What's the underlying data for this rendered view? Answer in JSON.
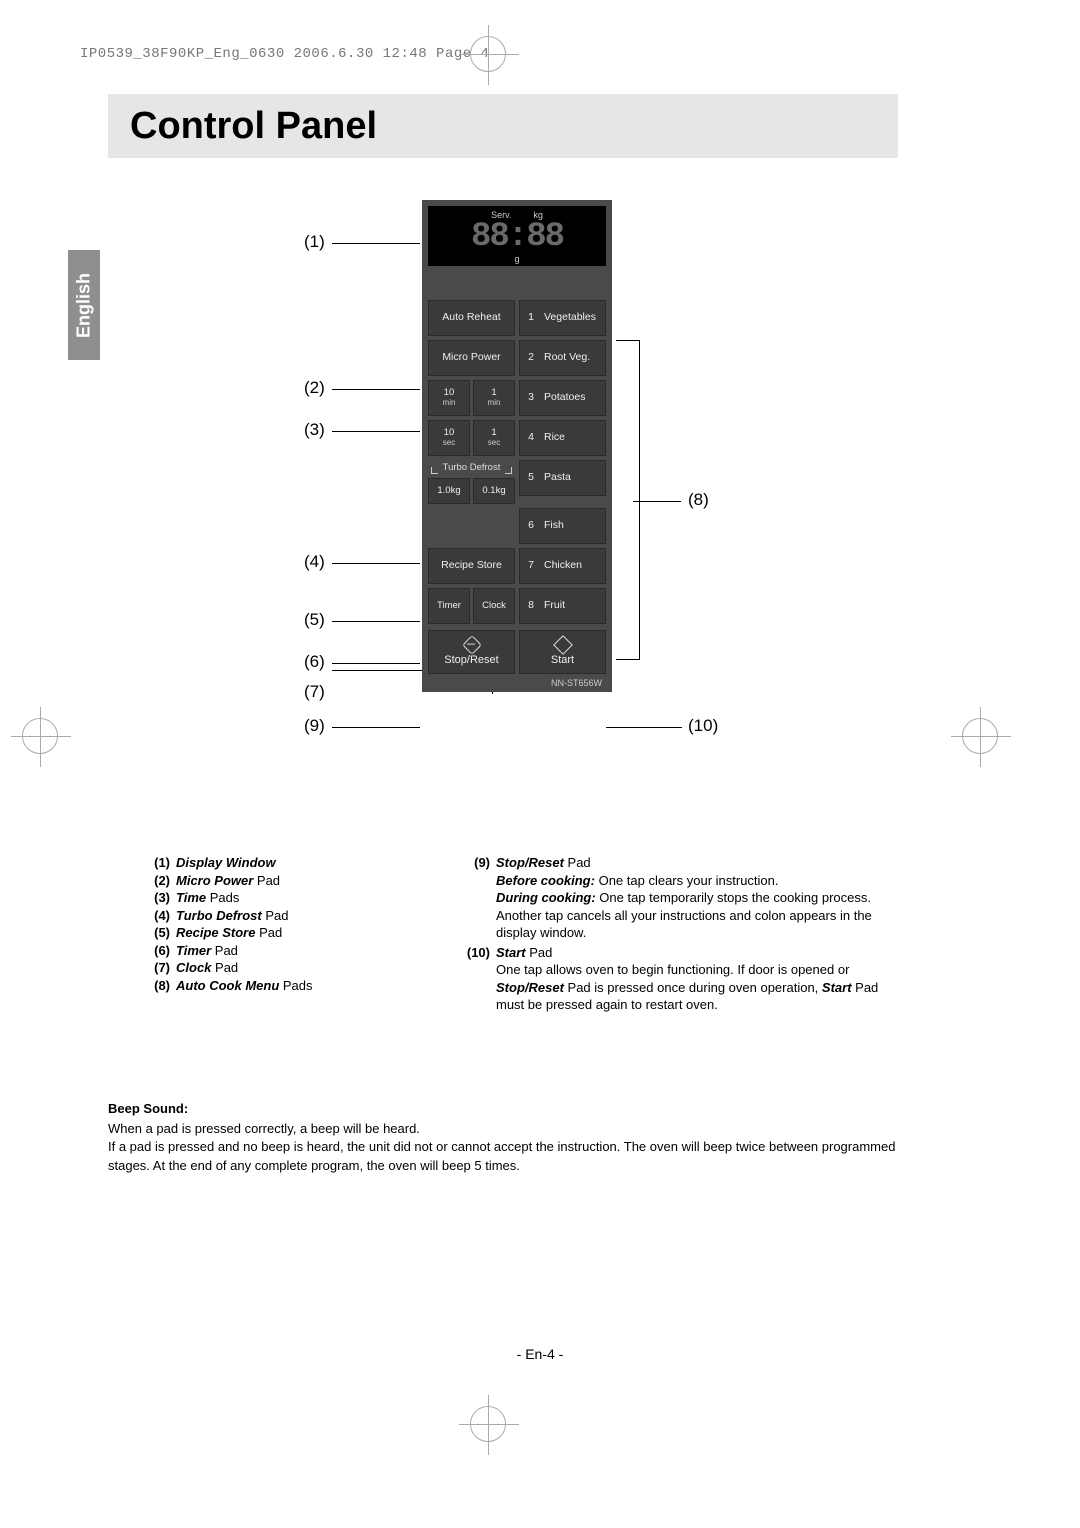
{
  "header": {
    "crop_text": "IP0539_38F90KP_Eng_0630  2006.6.30  12:48  Page 4",
    "title": "Control Panel",
    "lang_tab": "English",
    "page_number": "- En-4 -"
  },
  "panel": {
    "display": {
      "top_labels": [
        "Serv.",
        "kg"
      ],
      "segments": "88:88",
      "bottom_label": "g"
    },
    "left_buttons": {
      "auto_reheat": "Auto Reheat",
      "micro_power": "Micro Power",
      "time_10min": "10",
      "time_10min_unit": "min",
      "time_1min": "1",
      "time_1min_unit": "min",
      "time_10sec": "10",
      "time_10sec_unit": "sec",
      "time_1sec": "1",
      "time_1sec_unit": "sec",
      "turbo_label": "Turbo Defrost",
      "defrost_1kg": "1.0kg",
      "defrost_01kg": "0.1kg",
      "recipe_store": "Recipe Store",
      "timer": "Timer",
      "clock": "Clock"
    },
    "menu": [
      {
        "n": "1",
        "label": "Vegetables"
      },
      {
        "n": "2",
        "label": "Root Veg."
      },
      {
        "n": "3",
        "label": "Potatoes"
      },
      {
        "n": "4",
        "label": "Rice"
      },
      {
        "n": "5",
        "label": "Pasta"
      },
      {
        "n": "6",
        "label": "Fish"
      },
      {
        "n": "7",
        "label": "Chicken"
      },
      {
        "n": "8",
        "label": "Fruit"
      }
    ],
    "actions": {
      "stop_reset": "Stop/Reset",
      "start": "Start"
    },
    "model": "NN-ST656W"
  },
  "callouts": {
    "c1": "(1)",
    "c2": "(2)",
    "c3": "(3)",
    "c4": "(4)",
    "c5": "(5)",
    "c6": "(6)",
    "c7": "(7)",
    "c8": "(8)",
    "c9": "(9)",
    "c10": "(10)"
  },
  "legend_left": [
    {
      "idx": "(1)",
      "bold": "Display Window",
      "rest": ""
    },
    {
      "idx": "(2)",
      "bold": "Micro Power",
      "rest": " Pad"
    },
    {
      "idx": "(3)",
      "bold": "Time",
      "rest": " Pads"
    },
    {
      "idx": "(4)",
      "bold": "Turbo Defrost",
      "rest": " Pad"
    },
    {
      "idx": "(5)",
      "bold": "Recipe Store",
      "rest": " Pad"
    },
    {
      "idx": "(6)",
      "bold": "Timer",
      "rest": " Pad"
    },
    {
      "idx": "(7)",
      "bold": "Clock",
      "rest": " Pad"
    },
    {
      "idx": "(8)",
      "bold": "Auto Cook Menu",
      "rest": " Pads"
    }
  ],
  "legend_right": {
    "item9": {
      "idx": "(9)",
      "bold": "Stop/Reset",
      "rest": " Pad",
      "body_html": "Before cooking: One tap clears your instruction. During cooking: One tap temporarily stops the cooking process. Another tap cancels all your instructions and colon appears in the display window.",
      "before_label": "Before cooking:",
      "before_text": " One tap clears your instruction.",
      "during_label": "During cooking:",
      "during_text": " One tap temporarily stops the cooking process. Another tap cancels all your instructions and colon appears in the display window."
    },
    "item10": {
      "idx": "(10)",
      "bold": "Start",
      "rest": " Pad",
      "line1": "One tap allows oven to begin functioning. If door is opened or ",
      "sr": "Stop/Reset",
      "line2": " Pad is pressed once during oven operation, ",
      "st": "Start",
      "line3": " Pad must be pressed again to restart oven."
    }
  },
  "beep": {
    "heading": "Beep Sound:",
    "line1": "When a pad is pressed correctly, a beep will be heard.",
    "line2": "If a pad is pressed and no beep is heard, the unit did not or cannot accept the instruction. The oven will beep twice between programmed stages. At the end of any complete program, the oven will beep 5 times."
  },
  "colors": {
    "panel_bg": "#4a4a4a",
    "button_bg": "#3a3a3a",
    "button_text": "#eeeeee",
    "title_bar_bg": "#e6e6e6",
    "lang_tab_bg": "#8f8f8f"
  }
}
